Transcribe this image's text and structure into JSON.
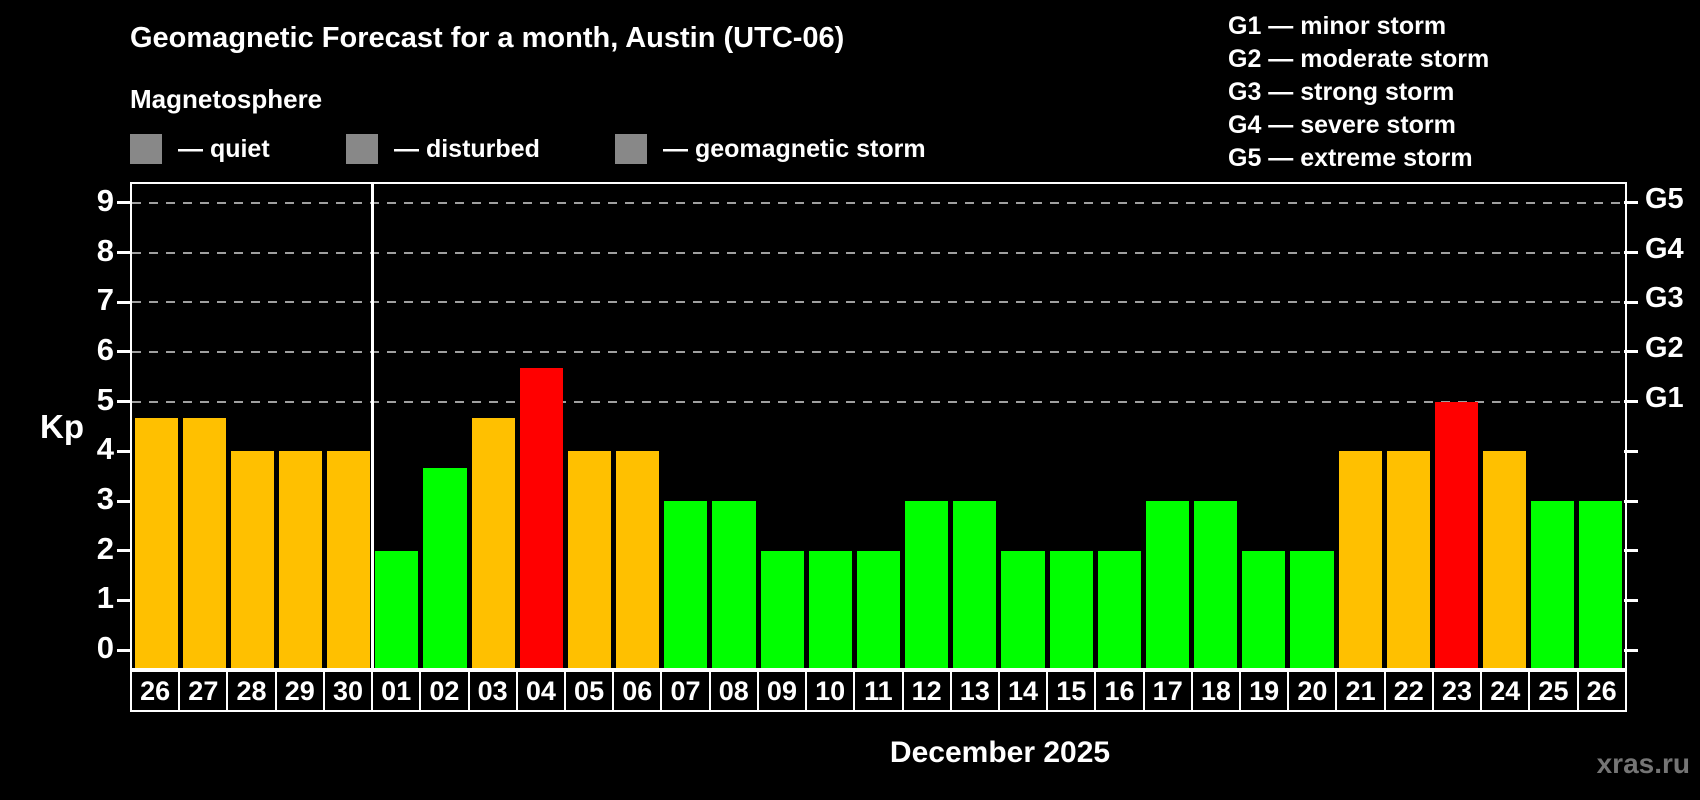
{
  "header": {
    "title": "Geomagnetic Forecast for a month, Austin (UTC-06)",
    "subtitle": "Magnetosphere"
  },
  "legend": {
    "items": [
      {
        "key": "quiet",
        "label": "— quiet",
        "color": "#00ff00"
      },
      {
        "key": "disturbed",
        "label": "— disturbed",
        "color": "#ffc000"
      },
      {
        "key": "storm",
        "label": "— geomagnetic storm",
        "color": "#ff0000"
      }
    ]
  },
  "g_legend": {
    "items": [
      "G1 — minor storm",
      "G2 — moderate storm",
      "G3 — strong storm",
      "G4 — severe storm",
      "G5 — extreme storm"
    ]
  },
  "footer": {
    "month_label": "December 2025",
    "watermark": "xras.ru"
  },
  "chart_data": {
    "type": "bar",
    "title": "Geomagnetic Forecast for a month, Austin (UTC-06)",
    "xlabel": "December 2025",
    "ylabel": "Kp",
    "y_range": [
      -0.36,
      9.38
    ],
    "y_ticks": [
      0,
      1,
      2,
      3,
      4,
      5,
      6,
      7,
      8,
      9
    ],
    "gridlines_at": [
      5,
      6,
      7,
      8,
      9
    ],
    "grid_style": "dashed",
    "right_axis": [
      {
        "value": 5,
        "label": "G1"
      },
      {
        "value": 6,
        "label": "G2"
      },
      {
        "value": 7,
        "label": "G3"
      },
      {
        "value": 8,
        "label": "G4"
      },
      {
        "value": 9,
        "label": "G5"
      }
    ],
    "month_separator_after_index": 4,
    "palette": {
      "quiet": "#00ff00",
      "disturbed": "#ffc000",
      "storm": "#ff0000"
    },
    "days": [
      {
        "date": "26",
        "kp": 4.67,
        "condition": "disturbed"
      },
      {
        "date": "27",
        "kp": 4.67,
        "condition": "disturbed"
      },
      {
        "date": "28",
        "kp": 4.0,
        "condition": "disturbed"
      },
      {
        "date": "29",
        "kp": 4.0,
        "condition": "disturbed"
      },
      {
        "date": "30",
        "kp": 4.0,
        "condition": "disturbed"
      },
      {
        "date": "01",
        "kp": 2.0,
        "condition": "quiet"
      },
      {
        "date": "02",
        "kp": 3.67,
        "condition": "quiet"
      },
      {
        "date": "03",
        "kp": 4.67,
        "condition": "disturbed"
      },
      {
        "date": "04",
        "kp": 5.67,
        "condition": "storm"
      },
      {
        "date": "05",
        "kp": 4.0,
        "condition": "disturbed"
      },
      {
        "date": "06",
        "kp": 4.0,
        "condition": "disturbed"
      },
      {
        "date": "07",
        "kp": 3.0,
        "condition": "quiet"
      },
      {
        "date": "08",
        "kp": 3.0,
        "condition": "quiet"
      },
      {
        "date": "09",
        "kp": 2.0,
        "condition": "quiet"
      },
      {
        "date": "10",
        "kp": 2.0,
        "condition": "quiet"
      },
      {
        "date": "11",
        "kp": 2.0,
        "condition": "quiet"
      },
      {
        "date": "12",
        "kp": 3.0,
        "condition": "quiet"
      },
      {
        "date": "13",
        "kp": 3.0,
        "condition": "quiet"
      },
      {
        "date": "14",
        "kp": 2.0,
        "condition": "quiet"
      },
      {
        "date": "15",
        "kp": 2.0,
        "condition": "quiet"
      },
      {
        "date": "16",
        "kp": 2.0,
        "condition": "quiet"
      },
      {
        "date": "17",
        "kp": 3.0,
        "condition": "quiet"
      },
      {
        "date": "18",
        "kp": 3.0,
        "condition": "quiet"
      },
      {
        "date": "19",
        "kp": 2.0,
        "condition": "quiet"
      },
      {
        "date": "20",
        "kp": 2.0,
        "condition": "quiet"
      },
      {
        "date": "21",
        "kp": 4.0,
        "condition": "disturbed"
      },
      {
        "date": "22",
        "kp": 4.0,
        "condition": "disturbed"
      },
      {
        "date": "23",
        "kp": 5.0,
        "condition": "storm"
      },
      {
        "date": "24",
        "kp": 4.0,
        "condition": "disturbed"
      },
      {
        "date": "25",
        "kp": 3.0,
        "condition": "quiet"
      },
      {
        "date": "26",
        "kp": 3.0,
        "condition": "quiet"
      }
    ]
  }
}
